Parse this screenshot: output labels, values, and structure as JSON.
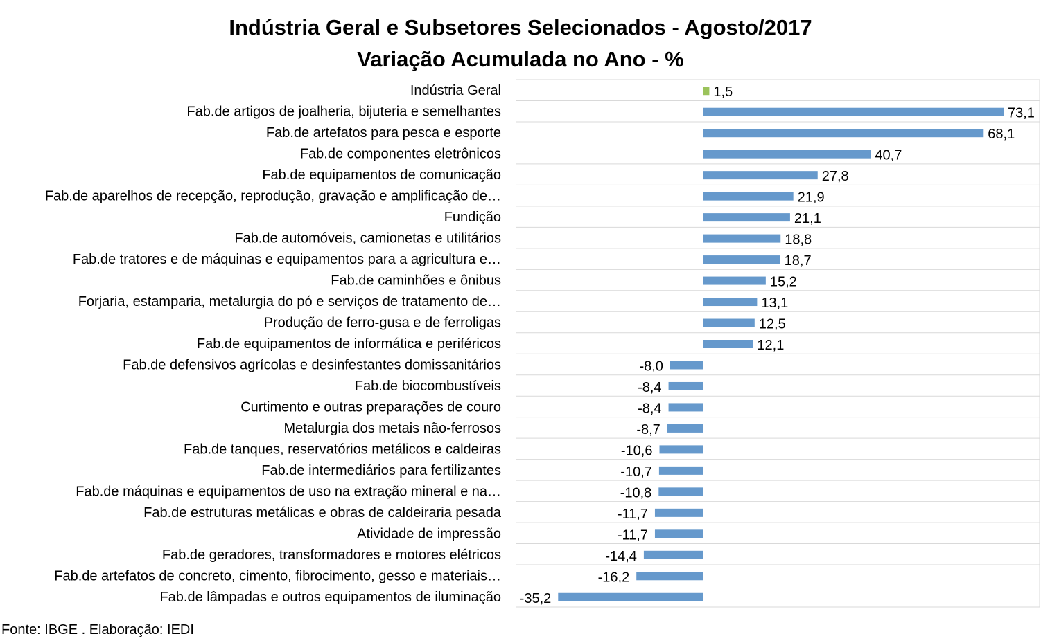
{
  "chart_data": {
    "type": "bar",
    "orientation": "horizontal",
    "title": "Indústria Geral e Subsetores Selecionados - Agosto/2017",
    "subtitle": "Variação Acumulada no Ano - %",
    "xlabel": "",
    "ylabel": "",
    "grid": "horizontal gridlines",
    "legend": "none",
    "xlim": [
      -35.2,
      73.1
    ],
    "categories": [
      "Indústria Geral",
      "Fab.de artigos de joalheria, bijuteria e semelhantes",
      "Fab.de artefatos para pesca e esporte",
      "Fab.de componentes eletrônicos",
      "Fab.de equipamentos de comunicação",
      "Fab.de aparelhos de recepção, reprodução, gravação e amplificação de…",
      "Fundição",
      "Fab.de automóveis, camionetas e utilitários",
      "Fab.de tratores e de máquinas e equipamentos para a agricultura e…",
      "Fab.de caminhões e ônibus",
      "Forjaria, estamparia, metalurgia do pó e serviços de tratamento de…",
      "Produção de ferro-gusa e de ferroligas",
      "Fab.de equipamentos de informática e periféricos",
      "Fab.de defensivos agrícolas e desinfestantes domissanitários",
      "Fab.de biocombustíveis",
      "Curtimento e outras preparações de couro",
      "Metalurgia dos metais não-ferrosos",
      "Fab.de tanques, reservatórios metálicos e caldeiras",
      "Fab.de intermediários para fertilizantes",
      "Fab.de máquinas e equipamentos de uso na extração mineral e na…",
      "Fab.de estruturas metálicas e obras de caldeiraria pesada",
      "Atividade de impressão",
      "Fab.de geradores, transformadores e motores elétricos",
      "Fab.de artefatos de concreto, cimento, fibrocimento, gesso e materiais…",
      "Fab.de lâmpadas e outros equipamentos de iluminação"
    ],
    "values": [
      1.5,
      73.1,
      68.1,
      40.7,
      27.8,
      21.9,
      21.1,
      18.8,
      18.7,
      15.2,
      13.1,
      12.5,
      12.1,
      -8.0,
      -8.4,
      -8.4,
      -8.7,
      -10.6,
      -10.7,
      -10.8,
      -11.7,
      -11.7,
      -14.4,
      -16.2,
      -35.2
    ],
    "data_labels": [
      "1,5",
      "73,1",
      "68,1",
      "40,7",
      "27,8",
      "21,9",
      "21,1",
      "18,8",
      "18,7",
      "15,2",
      "13,1",
      "12,5",
      "12,1",
      "-8,0",
      "-8,4",
      "-8,4",
      "-8,7",
      "-10,6",
      "-10,7",
      "-10,8",
      "-11,7",
      "-11,7",
      "-14,4",
      "-16,2",
      "-35,2"
    ],
    "colors": {
      "highlight": "#9BC35B",
      "bar": "#6699CC",
      "grid": "#D9D9D9",
      "axis": "#BFBFBF"
    }
  },
  "source": "Fonte: IBGE . Elaboração: IEDI"
}
